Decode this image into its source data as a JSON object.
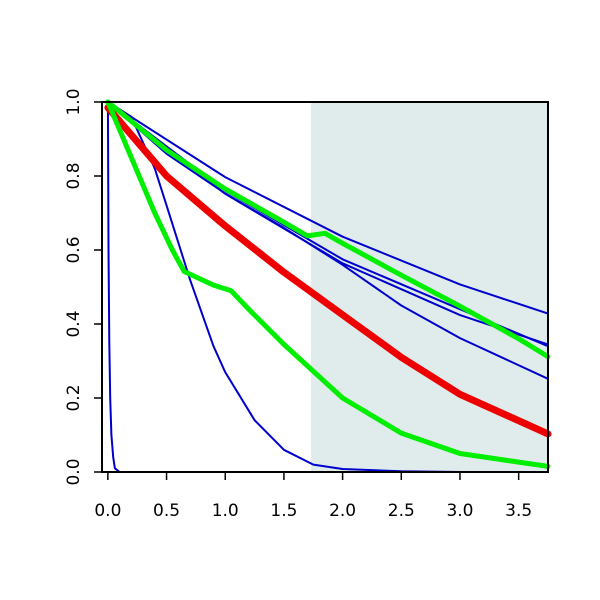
{
  "chart_data": {
    "type": "line",
    "title": "",
    "xlabel": "",
    "ylabel": "",
    "xlim": [
      -0.05,
      3.75
    ],
    "ylim": [
      0.0,
      1.0
    ],
    "x_ticks": [
      "0.0",
      "0.5",
      "1.0",
      "1.5",
      "2.0",
      "2.5",
      "3.0",
      "3.5"
    ],
    "y_ticks": [
      "0.0",
      "0.2",
      "0.4",
      "0.6",
      "0.8",
      "1.0"
    ],
    "legend": "none",
    "grid": false,
    "shaded_region": {
      "x_from": 1.73,
      "x_to": 3.75,
      "color": "#e0ecec"
    },
    "series": [
      {
        "color": "#0000cc",
        "width": 2,
        "points": [
          [
            0,
            1.0
          ],
          [
            1.0,
            0.797
          ],
          [
            2.0,
            0.636
          ],
          [
            3.0,
            0.507
          ],
          [
            3.75,
            0.428
          ]
        ]
      },
      {
        "color": "#0000cc",
        "width": 2,
        "points": [
          [
            0,
            1.0
          ],
          [
            1.0,
            0.76
          ],
          [
            2.0,
            0.575
          ],
          [
            3.0,
            0.44
          ],
          [
            3.75,
            0.34
          ]
        ]
      },
      {
        "color": "#0000cc",
        "width": 2,
        "points": [
          [
            0,
            1.0
          ],
          [
            1.0,
            0.752
          ],
          [
            2.0,
            0.564
          ],
          [
            3.0,
            0.424
          ],
          [
            3.75,
            0.345
          ]
        ]
      },
      {
        "color": "#0000cc",
        "width": 2,
        "points": [
          [
            0,
            1.0
          ],
          [
            0.5,
            0.86
          ],
          [
            1.0,
            0.753
          ],
          [
            1.5,
            0.66
          ],
          [
            2.0,
            0.56
          ],
          [
            2.5,
            0.45
          ],
          [
            3.0,
            0.362
          ],
          [
            3.75,
            0.252
          ]
        ]
      },
      {
        "color": "#0000cc",
        "width": 2,
        "points": [
          [
            0,
            1.0
          ],
          [
            0.2,
            0.96
          ],
          [
            0.4,
            0.82
          ],
          [
            0.5,
            0.72
          ],
          [
            0.7,
            0.52
          ],
          [
            0.9,
            0.34
          ],
          [
            1.0,
            0.27
          ],
          [
            1.25,
            0.14
          ],
          [
            1.5,
            0.06
          ],
          [
            1.75,
            0.02
          ],
          [
            2.0,
            0.008
          ],
          [
            2.5,
            0.002
          ],
          [
            3.0,
            0.0
          ],
          [
            3.75,
            0.0
          ]
        ]
      },
      {
        "color": "#0000cc",
        "width": 2,
        "points": [
          [
            0,
            1.0
          ],
          [
            0.005,
            0.6
          ],
          [
            0.012,
            0.35
          ],
          [
            0.02,
            0.2
          ],
          [
            0.03,
            0.1
          ],
          [
            0.045,
            0.04
          ],
          [
            0.06,
            0.01
          ],
          [
            0.1,
            0.0
          ],
          [
            3.75,
            0.0
          ]
        ]
      },
      {
        "color": "#ee0000",
        "width": 7,
        "points": [
          [
            0,
            0.985
          ],
          [
            0.5,
            0.8
          ],
          [
            1.0,
            0.665
          ],
          [
            1.5,
            0.54
          ],
          [
            2.0,
            0.425
          ],
          [
            2.5,
            0.31
          ],
          [
            3.0,
            0.21
          ],
          [
            3.75,
            0.103
          ]
        ]
      },
      {
        "color": "#00ee00",
        "width": 5,
        "points": [
          [
            0,
            1.0
          ],
          [
            0.5,
            0.87
          ],
          [
            1.0,
            0.765
          ],
          [
            1.5,
            0.675
          ],
          [
            1.7,
            0.638
          ],
          [
            1.85,
            0.645
          ],
          [
            2.0,
            0.618
          ],
          [
            2.5,
            0.532
          ],
          [
            3.0,
            0.448
          ],
          [
            3.5,
            0.36
          ],
          [
            3.75,
            0.312
          ]
        ]
      },
      {
        "color": "#00ee00",
        "width": 5,
        "points": [
          [
            0,
            1.0
          ],
          [
            0.2,
            0.85
          ],
          [
            0.4,
            0.7
          ],
          [
            0.55,
            0.6
          ],
          [
            0.65,
            0.542
          ],
          [
            0.9,
            0.505
          ],
          [
            1.05,
            0.49
          ],
          [
            1.2,
            0.44
          ],
          [
            1.5,
            0.345
          ],
          [
            2.0,
            0.2
          ],
          [
            2.5,
            0.105
          ],
          [
            3.0,
            0.05
          ],
          [
            3.75,
            0.015
          ]
        ]
      }
    ]
  }
}
